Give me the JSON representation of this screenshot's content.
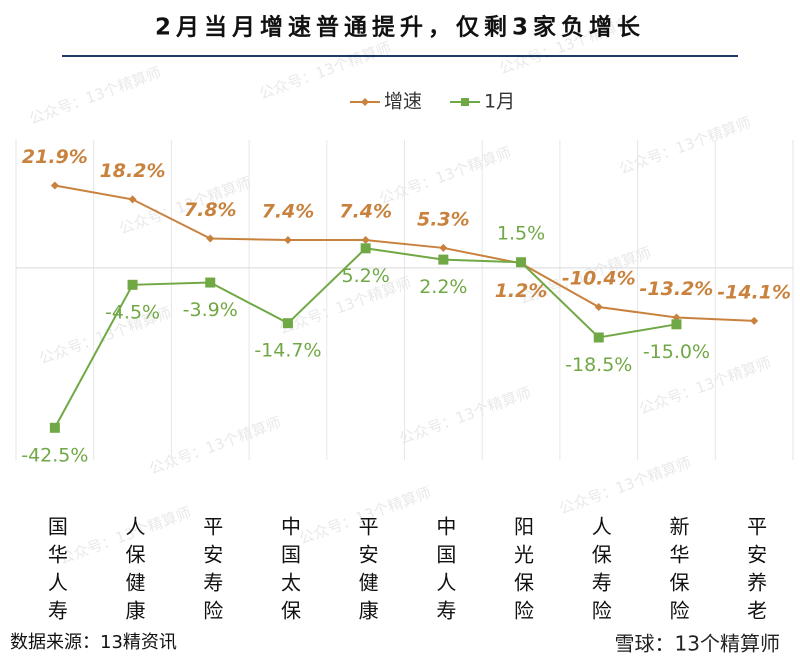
{
  "chart_data": {
    "type": "line",
    "title": "2月当月增速普通提升，仅剩3家负增长",
    "categories": [
      "国华人寿",
      "人保健康",
      "平安寿险",
      "中国太保",
      "平安健康",
      "中国人寿",
      "阳光保险",
      "人保寿险",
      "新华保险",
      "平安养老"
    ],
    "series": [
      {
        "name": "增速",
        "color": "#c9823e",
        "values": [
          21.9,
          18.2,
          7.8,
          7.4,
          7.4,
          5.3,
          1.2,
          -10.4,
          -13.2,
          -14.1
        ],
        "value_labels": [
          "21.9%",
          "18.2%",
          "7.8%",
          "7.4%",
          "7.4%",
          "5.3%",
          "1.2%",
          "-10.4%",
          "-13.2%",
          "-14.1%"
        ]
      },
      {
        "name": "1月",
        "color": "#70a845",
        "values": [
          -42.5,
          -4.5,
          -3.9,
          -14.7,
          5.2,
          2.2,
          1.5,
          -18.5,
          -15.0,
          null
        ],
        "value_labels": [
          "-42.5%",
          "-4.5%",
          "-3.9%",
          "-14.7%",
          "5.2%",
          "2.2%",
          "1.5%",
          "-18.5%",
          "-15.0%",
          null
        ]
      }
    ],
    "ylim": [
      -50,
      30
    ],
    "legend": "top",
    "source": "数据来源：13精资讯",
    "footer": "雪球：13个精算师",
    "watermark": "公众号：13个精算师"
  }
}
